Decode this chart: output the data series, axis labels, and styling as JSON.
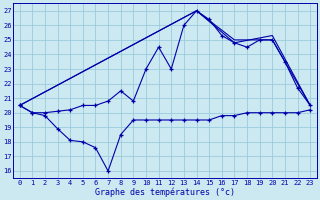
{
  "title": "Graphe des températures (°c)",
  "background_color": "#cce8f0",
  "grid_color": "#99ccdd",
  "line_color": "#0000aa",
  "xlim": [
    -0.5,
    23.5
  ],
  "ylim": [
    15.5,
    27.5
  ],
  "xticks": [
    0,
    1,
    2,
    3,
    4,
    5,
    6,
    7,
    8,
    9,
    10,
    11,
    12,
    13,
    14,
    15,
    16,
    17,
    18,
    19,
    20,
    21,
    22,
    23
  ],
  "yticks": [
    16,
    17,
    18,
    19,
    20,
    21,
    22,
    23,
    24,
    25,
    26,
    27
  ],
  "curve1_x": [
    0,
    1,
    2,
    3,
    4,
    5,
    6,
    7,
    8,
    9,
    10,
    11,
    12,
    13,
    14,
    15,
    16,
    17,
    18,
    19,
    20,
    21,
    22,
    23
  ],
  "curve1_y": [
    20.5,
    20.0,
    19.8,
    18.9,
    18.1,
    18.0,
    17.6,
    16.0,
    18.5,
    19.5,
    19.5,
    19.5,
    19.5,
    19.5,
    19.5,
    19.5,
    19.8,
    19.8,
    20.0,
    20.0,
    20.0,
    20.0,
    20.0,
    20.2
  ],
  "curve2_x": [
    0,
    1,
    2,
    3,
    4,
    5,
    6,
    7,
    8,
    9,
    10,
    11,
    12,
    13,
    14,
    15,
    16,
    17,
    18,
    19,
    20,
    21,
    22,
    23
  ],
  "curve2_y": [
    20.5,
    20.0,
    20.0,
    20.1,
    20.2,
    20.5,
    20.5,
    20.8,
    21.5,
    20.8,
    23.0,
    24.5,
    23.0,
    26.0,
    27.0,
    26.4,
    25.3,
    24.8,
    24.5,
    25.0,
    25.0,
    23.5,
    21.7,
    20.5
  ],
  "line3_x": [
    0,
    14,
    17,
    20,
    23
  ],
  "line3_y": [
    20.5,
    27.0,
    25.0,
    25.0,
    20.5
  ],
  "line4_x": [
    0,
    14,
    17,
    20,
    23
  ],
  "line4_y": [
    20.5,
    27.0,
    24.8,
    25.3,
    20.5
  ]
}
